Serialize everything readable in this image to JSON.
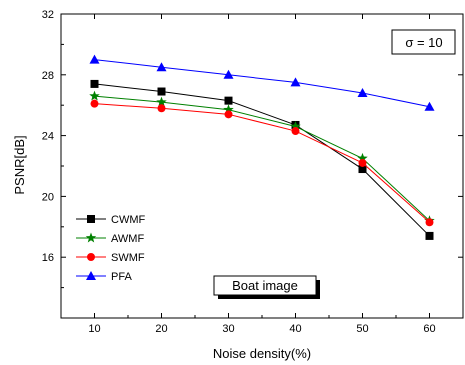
{
  "chart_data": {
    "type": "line",
    "title": "",
    "xlabel": "Noise density(%)",
    "ylabel": "PSNR[dB]",
    "x": [
      10,
      20,
      30,
      40,
      50,
      60
    ],
    "xlim": [
      5,
      65
    ],
    "ylim": [
      12,
      32
    ],
    "xticks": [
      "10",
      "20",
      "30",
      "40",
      "50",
      "60"
    ],
    "yticks": [
      "16",
      "20",
      "24",
      "28",
      "32"
    ],
    "grid": false,
    "legend_position": "bottom-left",
    "annotations": {
      "sigma": "σ = 10",
      "image_label": "Boat image"
    },
    "series": [
      {
        "name": "CWMF",
        "color": "#000000",
        "marker": "square",
        "values": [
          27.4,
          26.9,
          26.3,
          24.7,
          21.8,
          17.4
        ]
      },
      {
        "name": "AWMF",
        "color": "#008000",
        "marker": "star",
        "values": [
          26.6,
          26.2,
          25.7,
          24.6,
          22.5,
          18.4
        ]
      },
      {
        "name": "SWMF",
        "color": "#ff0000",
        "marker": "circle",
        "values": [
          26.1,
          25.8,
          25.4,
          24.3,
          22.2,
          18.3
        ]
      },
      {
        "name": "PFA",
        "color": "#0000ff",
        "marker": "triangle",
        "values": [
          29.0,
          28.5,
          28.0,
          27.5,
          26.8,
          25.9
        ]
      }
    ]
  }
}
